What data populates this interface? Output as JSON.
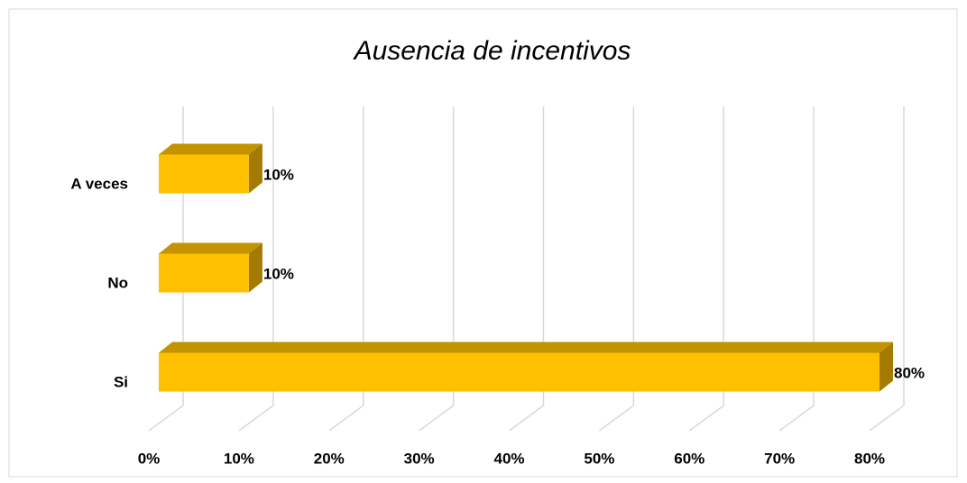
{
  "chart_data": {
    "type": "bar3d",
    "orientation": "horizontal",
    "title": "Ausencia de incentivos",
    "categories": [
      "A veces",
      "No",
      "Si"
    ],
    "values": [
      10,
      10,
      80
    ],
    "value_labels": [
      "10%",
      "10%",
      "80%"
    ],
    "color": "#ffc000",
    "xlim": [
      0,
      80
    ],
    "xticks": [
      {
        "value": 0,
        "label": "0%"
      },
      {
        "value": 10,
        "label": "10%"
      },
      {
        "value": 20,
        "label": "20%"
      },
      {
        "value": 30,
        "label": "30%"
      },
      {
        "value": 40,
        "label": "40%"
      },
      {
        "value": 50,
        "label": "50%"
      },
      {
        "value": 60,
        "label": "60%"
      },
      {
        "value": 70,
        "label": "70%"
      },
      {
        "value": 80,
        "label": "80%"
      }
    ],
    "grid": true
  }
}
